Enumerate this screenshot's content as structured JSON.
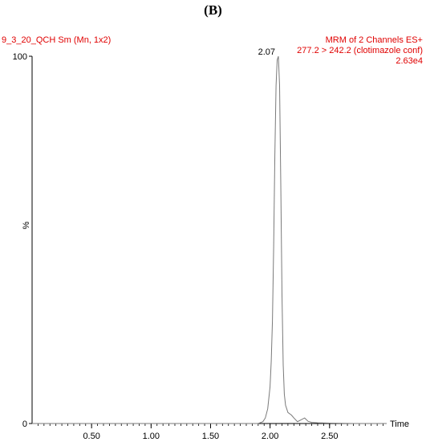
{
  "panel_label": "(B)",
  "header": {
    "left": "9_3_20_QCH Sm (Mn, 1x2)",
    "right_lines": [
      "MRM of 2 Channels ES+",
      "277.2 > 242.2 (clotimazole conf)",
      "2.63e4"
    ]
  },
  "colors": {
    "header_text": "#e00000",
    "trace": "#7a7a7a",
    "axis": "#000000"
  },
  "chart_data": {
    "type": "line",
    "xlabel": "Time",
    "ylabel": "%",
    "xlim": [
      0.0,
      2.98
    ],
    "ylim": [
      0,
      100
    ],
    "x_ticks": [
      0.5,
      1.0,
      1.5,
      2.0,
      2.5
    ],
    "x_tick_labels": [
      "0.50",
      "1.00",
      "1.50",
      "2.00",
      "2.50"
    ],
    "y_tick_labels": [
      "0",
      "100"
    ],
    "peak_annotation": {
      "x": 2.07,
      "y": 100,
      "label": "2.07"
    },
    "series": [
      {
        "x": [
          0.0,
          0.5,
          1.0,
          1.5,
          1.9,
          1.94,
          1.96,
          1.98,
          2.0,
          2.01,
          2.02,
          2.03,
          2.04,
          2.05,
          2.06,
          2.07,
          2.08,
          2.09,
          2.1,
          2.11,
          2.12,
          2.13,
          2.15,
          2.18,
          2.2,
          2.23,
          2.26,
          2.29,
          2.32,
          2.35,
          2.4,
          2.5,
          2.7,
          2.98
        ],
        "y": [
          0,
          0,
          0,
          0,
          0,
          0.5,
          1.5,
          4,
          10,
          17,
          28,
          48,
          73,
          92,
          99,
          100,
          92,
          65,
          35,
          16,
          8,
          5,
          3,
          2.3,
          1.5,
          0.5,
          1,
          1.5,
          0.6,
          0.3,
          0.2,
          0.1,
          0,
          0
        ]
      }
    ]
  }
}
